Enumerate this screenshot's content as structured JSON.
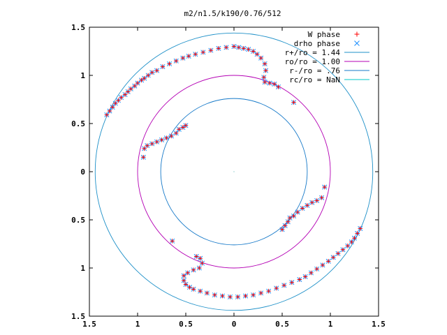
{
  "chart_data": {
    "type": "scatter",
    "title": "m2/n1.5/k190/0.76/512",
    "xlabel": "",
    "ylabel": "",
    "xlim": [
      -1.5,
      1.5
    ],
    "ylim": [
      -1.5,
      1.5
    ],
    "x_ticks": [
      {
        "value": -1.5,
        "label": "1.5"
      },
      {
        "value": -1.0,
        "label": "1"
      },
      {
        "value": -0.5,
        "label": "0.5"
      },
      {
        "value": 0.0,
        "label": "0"
      },
      {
        "value": 0.5,
        "label": "0.5"
      },
      {
        "value": 1.0,
        "label": "1"
      },
      {
        "value": 1.5,
        "label": "1.5"
      }
    ],
    "y_ticks": [
      {
        "value": 1.5,
        "label": "1.5"
      },
      {
        "value": 1.0,
        "label": "1"
      },
      {
        "value": 0.5,
        "label": "0.5"
      },
      {
        "value": 0.0,
        "label": "0"
      },
      {
        "value": -0.5,
        "label": "0.5"
      },
      {
        "value": -1.0,
        "label": "1"
      },
      {
        "value": -1.5,
        "label": "1.5"
      }
    ],
    "grid": false,
    "legend_position": "top-right",
    "series": [
      {
        "name": "W phase",
        "marker": "plus",
        "color": "#ff0000",
        "points": [
          [
            -1.32,
            0.59
          ],
          [
            -1.29,
            0.63
          ],
          [
            -1.26,
            0.67
          ],
          [
            -1.23,
            0.71
          ],
          [
            -1.2,
            0.74
          ],
          [
            -1.17,
            0.77
          ],
          [
            -1.13,
            0.8
          ],
          [
            -1.1,
            0.83
          ],
          [
            -1.07,
            0.86
          ],
          [
            -1.03,
            0.89
          ],
          [
            -1.0,
            0.92
          ],
          [
            -0.96,
            0.95
          ],
          [
            -0.93,
            0.97
          ],
          [
            -0.89,
            1.0
          ],
          [
            -0.85,
            1.03
          ],
          [
            -0.8,
            1.05
          ],
          [
            -0.74,
            1.09
          ],
          [
            -0.67,
            1.12
          ],
          [
            -0.6,
            1.15
          ],
          [
            -0.53,
            1.18
          ],
          [
            -0.47,
            1.2
          ],
          [
            -0.4,
            1.22
          ],
          [
            -0.32,
            1.24
          ],
          [
            -0.24,
            1.26
          ],
          [
            -0.16,
            1.28
          ],
          [
            -0.08,
            1.29
          ],
          [
            0.0,
            1.3
          ],
          [
            0.05,
            1.29
          ],
          [
            0.1,
            1.28
          ],
          [
            0.15,
            1.27
          ],
          [
            0.2,
            1.25
          ],
          [
            0.24,
            1.22
          ],
          [
            0.28,
            1.18
          ],
          [
            0.32,
            1.12
          ],
          [
            0.33,
            1.05
          ],
          [
            0.31,
            0.98
          ],
          [
            0.32,
            0.93
          ],
          [
            0.37,
            0.92
          ],
          [
            0.42,
            0.91
          ],
          [
            0.46,
            0.88
          ],
          [
            0.62,
            0.72
          ],
          [
            -0.94,
            0.15
          ],
          [
            -0.93,
            0.24
          ],
          [
            -0.9,
            0.27
          ],
          [
            -0.85,
            0.29
          ],
          [
            -0.8,
            0.31
          ],
          [
            -0.75,
            0.33
          ],
          [
            -0.7,
            0.35
          ],
          [
            -0.65,
            0.37
          ],
          [
            -0.6,
            0.4
          ],
          [
            -0.57,
            0.44
          ],
          [
            -0.53,
            0.46
          ],
          [
            -0.5,
            0.48
          ],
          [
            0.94,
            -0.16
          ],
          [
            0.91,
            -0.27
          ],
          [
            0.86,
            -0.3
          ],
          [
            0.81,
            -0.32
          ],
          [
            0.76,
            -0.35
          ],
          [
            0.71,
            -0.38
          ],
          [
            0.66,
            -0.42
          ],
          [
            0.62,
            -0.46
          ],
          [
            0.58,
            -0.48
          ],
          [
            0.56,
            -0.52
          ],
          [
            0.53,
            -0.56
          ],
          [
            0.5,
            -0.6
          ],
          [
            -0.64,
            -0.72
          ],
          [
            -0.39,
            -0.88
          ],
          [
            -0.35,
            -0.9
          ],
          [
            -0.33,
            -0.95
          ],
          [
            -0.36,
            -1.0
          ],
          [
            -0.42,
            -1.02
          ],
          [
            -0.48,
            -1.05
          ],
          [
            -0.52,
            -1.08
          ],
          [
            -0.52,
            -1.13
          ],
          [
            -0.5,
            -1.17
          ],
          [
            -0.46,
            -1.2
          ],
          [
            -0.42,
            -1.22
          ],
          [
            -0.35,
            -1.24
          ],
          [
            -0.28,
            -1.26
          ],
          [
            -0.2,
            -1.28
          ],
          [
            -0.12,
            -1.29
          ],
          [
            -0.04,
            -1.3
          ],
          [
            0.04,
            -1.3
          ],
          [
            0.12,
            -1.29
          ],
          [
            0.2,
            -1.28
          ],
          [
            0.28,
            -1.26
          ],
          [
            0.36,
            -1.24
          ],
          [
            0.44,
            -1.21
          ],
          [
            0.52,
            -1.18
          ],
          [
            0.6,
            -1.15
          ],
          [
            0.68,
            -1.12
          ],
          [
            0.74,
            -1.09
          ],
          [
            0.8,
            -1.05
          ],
          [
            0.86,
            -1.01
          ],
          [
            0.92,
            -0.97
          ],
          [
            0.98,
            -0.93
          ],
          [
            1.03,
            -0.89
          ],
          [
            1.08,
            -0.85
          ],
          [
            1.13,
            -0.81
          ],
          [
            1.18,
            -0.77
          ],
          [
            1.22,
            -0.73
          ],
          [
            1.25,
            -0.69
          ],
          [
            1.28,
            -0.64
          ],
          [
            1.31,
            -0.59
          ]
        ]
      },
      {
        "name": "drho phase",
        "marker": "cross",
        "color": "#1e90ff",
        "points": [
          [
            -1.32,
            0.59
          ],
          [
            -1.29,
            0.63
          ],
          [
            -1.26,
            0.67
          ],
          [
            -1.23,
            0.71
          ],
          [
            -1.2,
            0.74
          ],
          [
            -1.17,
            0.77
          ],
          [
            -1.13,
            0.8
          ],
          [
            -1.1,
            0.83
          ],
          [
            -1.07,
            0.86
          ],
          [
            -1.03,
            0.89
          ],
          [
            -1.0,
            0.92
          ],
          [
            -0.96,
            0.95
          ],
          [
            -0.93,
            0.97
          ],
          [
            -0.89,
            1.0
          ],
          [
            -0.85,
            1.03
          ],
          [
            -0.8,
            1.05
          ],
          [
            -0.74,
            1.09
          ],
          [
            -0.67,
            1.12
          ],
          [
            -0.6,
            1.15
          ],
          [
            -0.53,
            1.18
          ],
          [
            -0.47,
            1.2
          ],
          [
            -0.4,
            1.22
          ],
          [
            -0.32,
            1.24
          ],
          [
            -0.24,
            1.26
          ],
          [
            -0.16,
            1.28
          ],
          [
            -0.08,
            1.29
          ],
          [
            0.0,
            1.3
          ],
          [
            0.05,
            1.29
          ],
          [
            0.1,
            1.28
          ],
          [
            0.15,
            1.27
          ],
          [
            0.2,
            1.25
          ],
          [
            0.24,
            1.22
          ],
          [
            0.28,
            1.18
          ],
          [
            0.32,
            1.12
          ],
          [
            0.33,
            1.05
          ],
          [
            0.31,
            0.98
          ],
          [
            0.32,
            0.93
          ],
          [
            0.37,
            0.92
          ],
          [
            0.42,
            0.91
          ],
          [
            0.46,
            0.88
          ],
          [
            0.62,
            0.72
          ],
          [
            -0.94,
            0.15
          ],
          [
            -0.93,
            0.24
          ],
          [
            -0.9,
            0.27
          ],
          [
            -0.85,
            0.29
          ],
          [
            -0.8,
            0.31
          ],
          [
            -0.75,
            0.33
          ],
          [
            -0.7,
            0.35
          ],
          [
            -0.65,
            0.37
          ],
          [
            -0.6,
            0.4
          ],
          [
            -0.57,
            0.44
          ],
          [
            -0.53,
            0.46
          ],
          [
            -0.5,
            0.48
          ],
          [
            0.94,
            -0.16
          ],
          [
            0.91,
            -0.27
          ],
          [
            0.86,
            -0.3
          ],
          [
            0.81,
            -0.32
          ],
          [
            0.76,
            -0.35
          ],
          [
            0.71,
            -0.38
          ],
          [
            0.66,
            -0.42
          ],
          [
            0.62,
            -0.46
          ],
          [
            0.58,
            -0.48
          ],
          [
            0.56,
            -0.52
          ],
          [
            0.53,
            -0.56
          ],
          [
            0.5,
            -0.6
          ],
          [
            -0.64,
            -0.72
          ],
          [
            -0.39,
            -0.88
          ],
          [
            -0.35,
            -0.9
          ],
          [
            -0.33,
            -0.95
          ],
          [
            -0.36,
            -1.0
          ],
          [
            -0.42,
            -1.02
          ],
          [
            -0.48,
            -1.05
          ],
          [
            -0.52,
            -1.08
          ],
          [
            -0.52,
            -1.13
          ],
          [
            -0.5,
            -1.17
          ],
          [
            -0.46,
            -1.2
          ],
          [
            -0.42,
            -1.22
          ],
          [
            -0.35,
            -1.24
          ],
          [
            -0.28,
            -1.26
          ],
          [
            -0.2,
            -1.28
          ],
          [
            -0.12,
            -1.29
          ],
          [
            -0.04,
            -1.3
          ],
          [
            0.04,
            -1.3
          ],
          [
            0.12,
            -1.29
          ],
          [
            0.2,
            -1.28
          ],
          [
            0.28,
            -1.26
          ],
          [
            0.36,
            -1.24
          ],
          [
            0.44,
            -1.21
          ],
          [
            0.52,
            -1.18
          ],
          [
            0.6,
            -1.15
          ],
          [
            0.68,
            -1.12
          ],
          [
            0.74,
            -1.09
          ],
          [
            0.8,
            -1.05
          ],
          [
            0.86,
            -1.01
          ],
          [
            0.92,
            -0.97
          ],
          [
            0.98,
            -0.93
          ],
          [
            1.03,
            -0.89
          ],
          [
            1.08,
            -0.85
          ],
          [
            1.13,
            -0.81
          ],
          [
            1.18,
            -0.77
          ],
          [
            1.22,
            -0.73
          ],
          [
            1.25,
            -0.69
          ],
          [
            1.28,
            -0.64
          ],
          [
            1.31,
            -0.59
          ]
        ]
      },
      {
        "name": "r+/ro = 1.44",
        "marker": "line",
        "color": "#1e90c8",
        "radius": 1.44
      },
      {
        "name": "ro/ro = 1.00",
        "marker": "line",
        "color": "#b400b4",
        "radius": 1.0
      },
      {
        "name": "r-/ro = .76",
        "marker": "line",
        "color": "#1478c8",
        "radius": 0.76
      },
      {
        "name": "rc/ro = NaN",
        "marker": "line",
        "color": "#00c8c8",
        "radius": null
      }
    ]
  }
}
